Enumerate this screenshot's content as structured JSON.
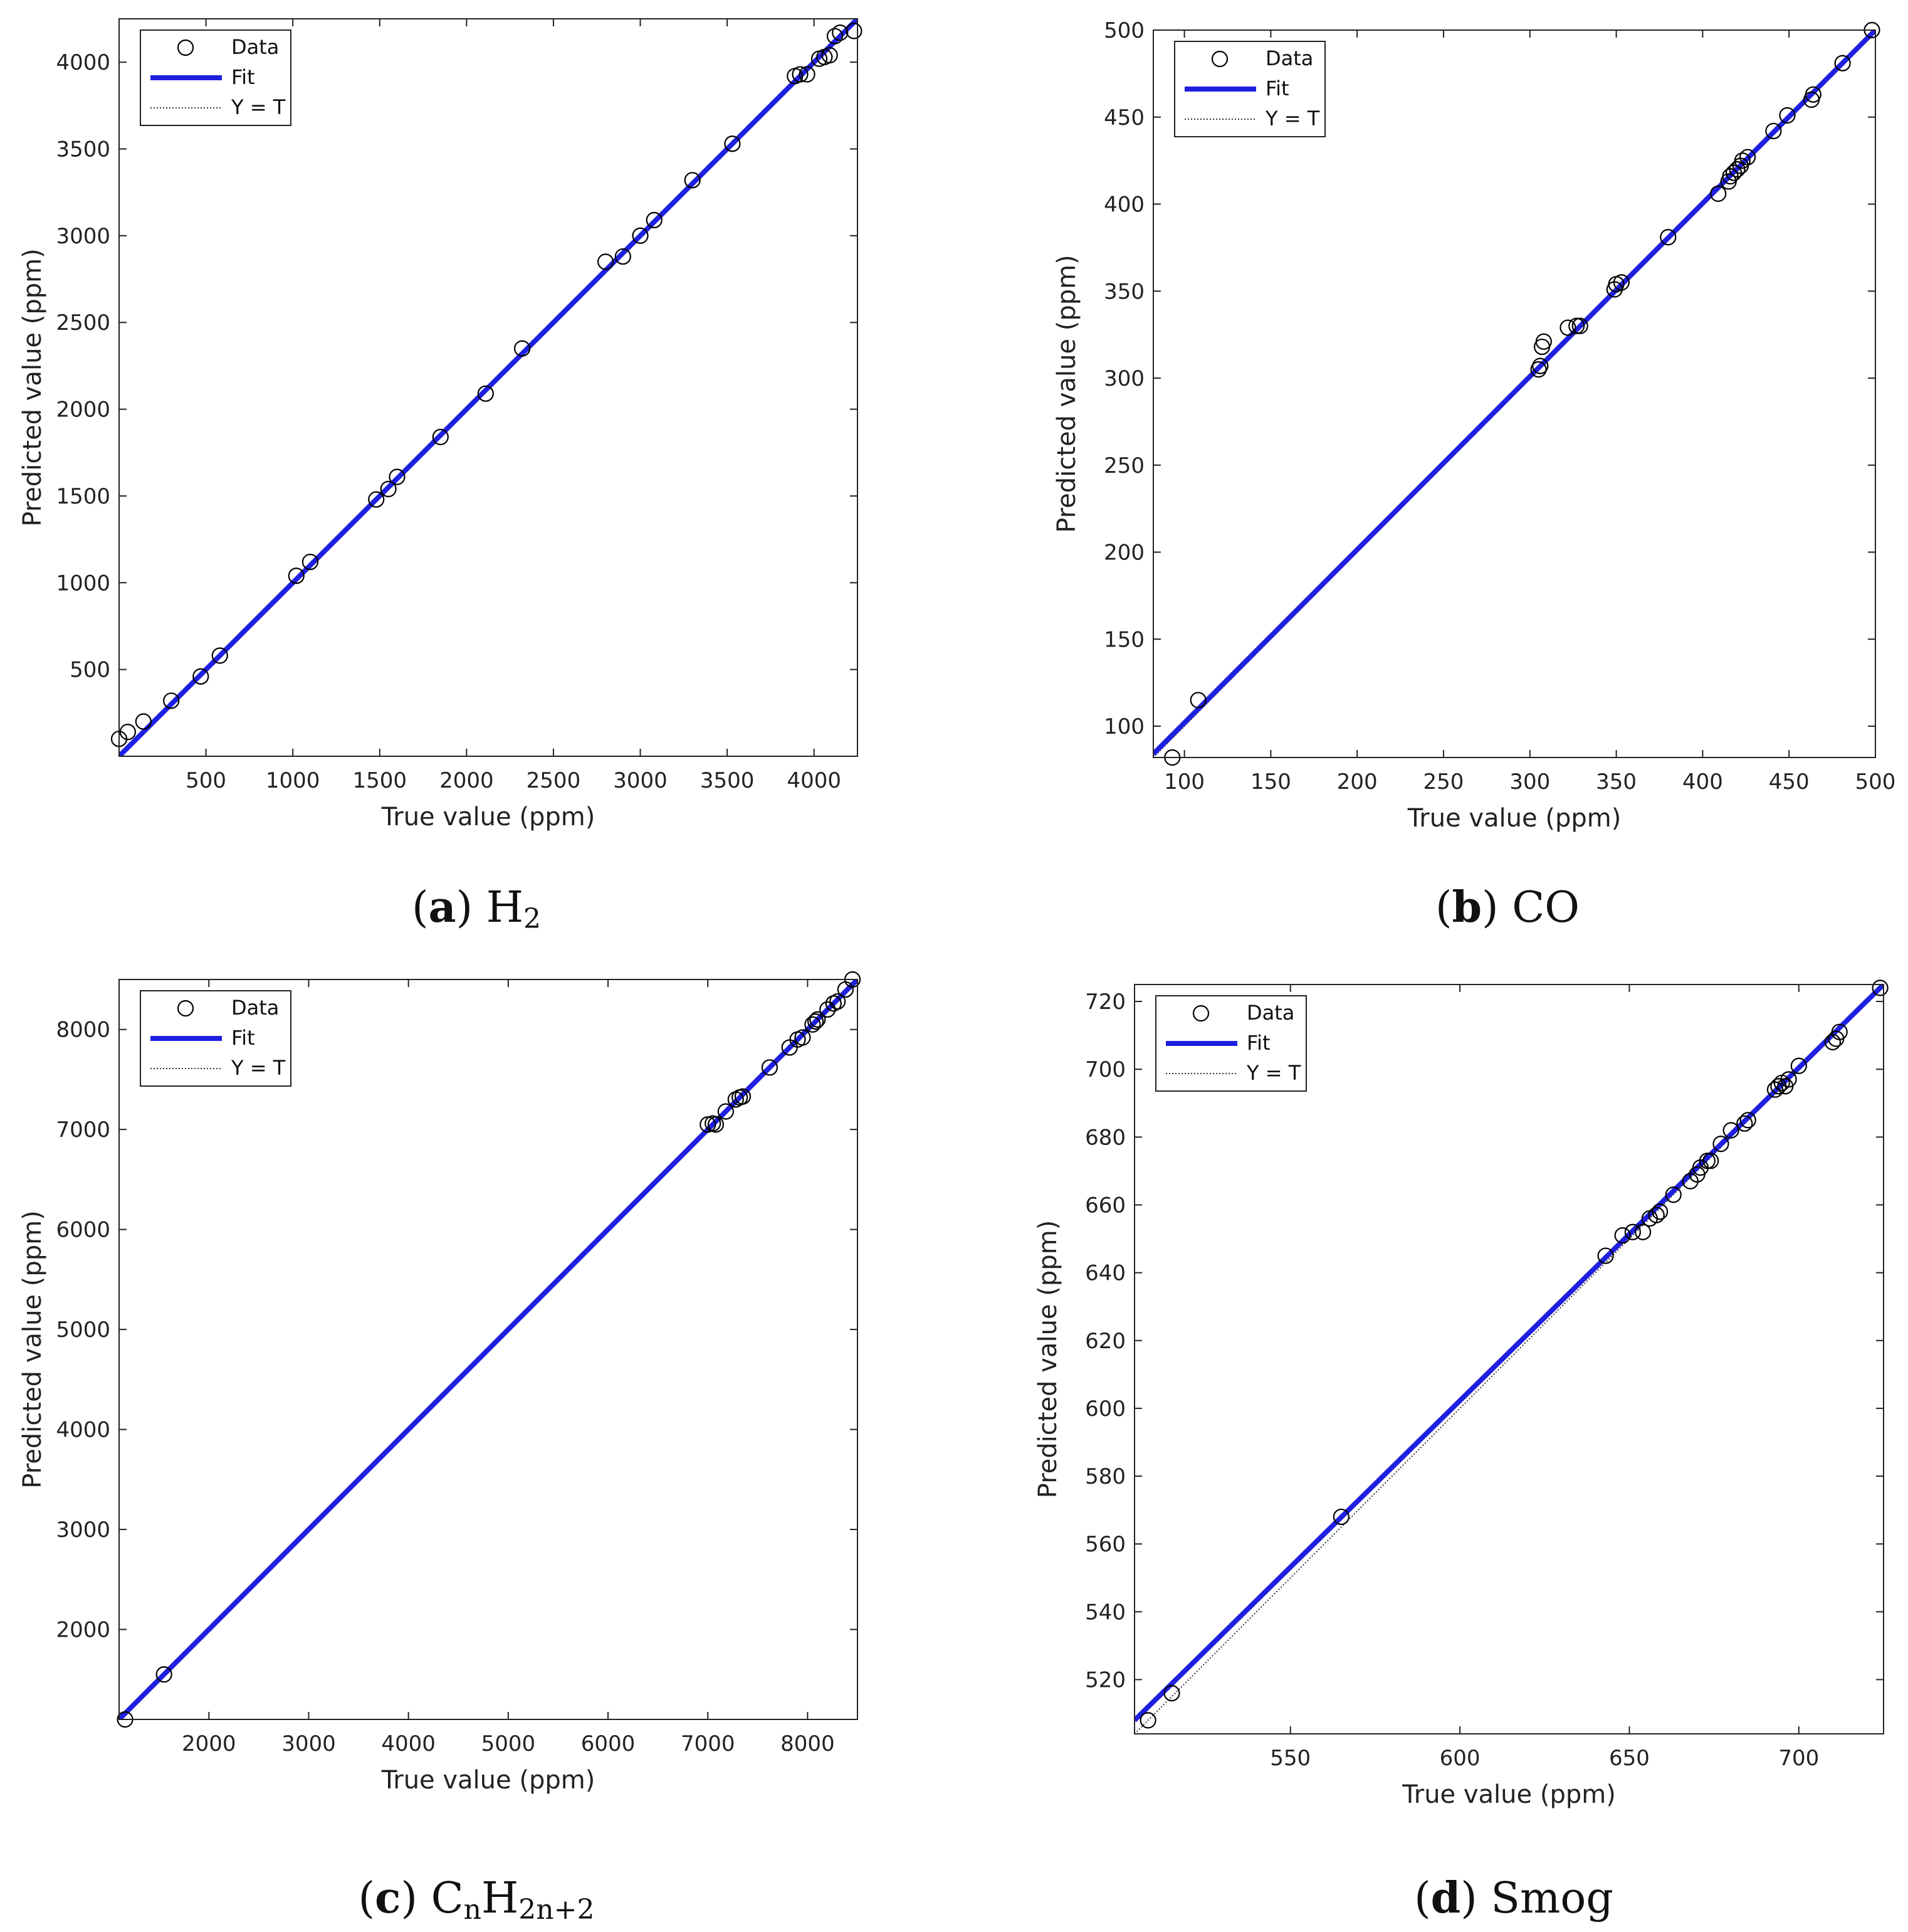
{
  "chart_data": [
    {
      "type": "scatter",
      "caption": {
        "letter": "a",
        "gas": "H",
        "sub": "2"
      },
      "xlabel": "True value (ppm)",
      "ylabel": "Predicted value (ppm)",
      "xlim": [
        0,
        4250
      ],
      "ylim": [
        0,
        4250
      ],
      "xticks": [
        500,
        1000,
        1500,
        2000,
        2500,
        3000,
        3500,
        4000
      ],
      "yticks": [
        500,
        1000,
        1500,
        2000,
        2500,
        3000,
        3500,
        4000
      ],
      "legend": {
        "position": "top-left",
        "entries": [
          "Data",
          "Fit",
          "Y = T"
        ]
      },
      "fit_color": "#1f1fe0",
      "fit_line": [
        [
          0,
          0
        ],
        [
          4250,
          4250
        ]
      ],
      "points": [
        [
          0,
          100
        ],
        [
          50,
          140
        ],
        [
          140,
          200
        ],
        [
          300,
          320
        ],
        [
          470,
          460
        ],
        [
          580,
          580
        ],
        [
          1020,
          1040
        ],
        [
          1100,
          1120
        ],
        [
          1480,
          1480
        ],
        [
          1550,
          1540
        ],
        [
          1600,
          1610
        ],
        [
          1850,
          1840
        ],
        [
          2110,
          2090
        ],
        [
          2320,
          2350
        ],
        [
          2800,
          2850
        ],
        [
          2900,
          2880
        ],
        [
          3000,
          3000
        ],
        [
          3080,
          3090
        ],
        [
          3300,
          3320
        ],
        [
          3530,
          3530
        ],
        [
          3890,
          3920
        ],
        [
          3920,
          3930
        ],
        [
          3960,
          3930
        ],
        [
          4030,
          4020
        ],
        [
          4060,
          4030
        ],
        [
          4090,
          4040
        ],
        [
          4120,
          4150
        ],
        [
          4150,
          4170
        ],
        [
          4230,
          4180
        ]
      ]
    },
    {
      "type": "scatter",
      "caption": {
        "letter": "b",
        "gas": "CO",
        "sub": ""
      },
      "xlabel": "True value (ppm)",
      "ylabel": "Predicted value (ppm)",
      "xlim": [
        82,
        500
      ],
      "ylim": [
        82,
        500
      ],
      "xticks": [
        100,
        150,
        200,
        250,
        300,
        350,
        400,
        450,
        500
      ],
      "yticks": [
        100,
        150,
        200,
        250,
        300,
        350,
        400,
        450,
        500
      ],
      "legend": {
        "position": "top-left",
        "entries": [
          "Data",
          "Fit",
          "Y = T"
        ]
      },
      "fit_color": "#1f1fe0",
      "fit_line": [
        [
          82,
          84
        ],
        [
          500,
          500
        ]
      ],
      "points": [
        [
          93,
          82
        ],
        [
          108,
          115
        ],
        [
          305,
          305
        ],
        [
          306,
          307
        ],
        [
          307,
          318
        ],
        [
          308,
          321
        ],
        [
          322,
          329
        ],
        [
          327,
          330
        ],
        [
          329,
          330
        ],
        [
          349,
          351
        ],
        [
          350,
          354
        ],
        [
          353,
          355
        ],
        [
          380,
          381
        ],
        [
          409,
          406
        ],
        [
          415,
          413
        ],
        [
          416,
          416
        ],
        [
          418,
          418
        ],
        [
          420,
          420
        ],
        [
          422,
          422
        ],
        [
          423,
          425
        ],
        [
          426,
          427
        ],
        [
          441,
          442
        ],
        [
          449,
          451
        ],
        [
          463,
          460
        ],
        [
          464,
          463
        ],
        [
          481,
          481
        ],
        [
          498,
          500
        ]
      ]
    },
    {
      "type": "scatter",
      "caption": {
        "letter": "c",
        "gas": "C",
        "sub": "n",
        "gas2": "H",
        "sub2": "2n+2"
      },
      "xlabel": "True value (ppm)",
      "ylabel": "Predicted value (ppm)",
      "xlim": [
        1100,
        8500
      ],
      "ylim": [
        1100,
        8500
      ],
      "xticks": [
        2000,
        3000,
        4000,
        5000,
        6000,
        7000,
        8000
      ],
      "yticks": [
        2000,
        3000,
        4000,
        5000,
        6000,
        7000,
        8000
      ],
      "legend": {
        "position": "top-left",
        "entries": [
          "Data",
          "Fit",
          "Y = T"
        ]
      },
      "fit_color": "#1f1fe0",
      "fit_line": [
        [
          1100,
          1100
        ],
        [
          8500,
          8500
        ]
      ],
      "points": [
        [
          1160,
          1100
        ],
        [
          1550,
          1550
        ],
        [
          7000,
          7050
        ],
        [
          7050,
          7060
        ],
        [
          7080,
          7050
        ],
        [
          7180,
          7180
        ],
        [
          7280,
          7300
        ],
        [
          7320,
          7320
        ],
        [
          7350,
          7330
        ],
        [
          7620,
          7620
        ],
        [
          7820,
          7820
        ],
        [
          7900,
          7900
        ],
        [
          7950,
          7920
        ],
        [
          8050,
          8050
        ],
        [
          8080,
          8080
        ],
        [
          8100,
          8100
        ],
        [
          8200,
          8200
        ],
        [
          8260,
          8260
        ],
        [
          8300,
          8280
        ],
        [
          8380,
          8400
        ],
        [
          8450,
          8500
        ]
      ]
    },
    {
      "type": "scatter",
      "caption": {
        "letter": "d",
        "gas": "Smog",
        "sub": ""
      },
      "xlabel": "True value (ppm)",
      "ylabel": "Predicted value (ppm)",
      "xlim": [
        504,
        725
      ],
      "ylim": [
        504,
        725
      ],
      "xticks": [
        550,
        600,
        650,
        700
      ],
      "yticks": [
        520,
        540,
        560,
        580,
        600,
        620,
        640,
        660,
        680,
        700,
        720
      ],
      "legend": {
        "position": "top-left",
        "entries": [
          "Data",
          "Fit",
          "Y = T"
        ]
      },
      "fit_color": "#1f1fe0",
      "fit_line": [
        [
          504,
          508
        ],
        [
          725,
          725
        ]
      ],
      "points": [
        [
          508,
          508
        ],
        [
          515,
          516
        ],
        [
          565,
          568
        ],
        [
          643,
          645
        ],
        [
          648,
          651
        ],
        [
          651,
          652
        ],
        [
          654,
          652
        ],
        [
          656,
          656
        ],
        [
          658,
          657
        ],
        [
          659,
          658
        ],
        [
          663,
          663
        ],
        [
          668,
          667
        ],
        [
          670,
          669
        ],
        [
          671,
          671
        ],
        [
          673,
          673
        ],
        [
          674,
          673
        ],
        [
          677,
          678
        ],
        [
          680,
          682
        ],
        [
          684,
          684
        ],
        [
          685,
          685
        ],
        [
          693,
          694
        ],
        [
          694,
          695
        ],
        [
          695,
          696
        ],
        [
          696,
          695
        ],
        [
          697,
          697
        ],
        [
          700,
          701
        ],
        [
          710,
          708
        ],
        [
          711,
          709
        ],
        [
          712,
          711
        ],
        [
          724,
          724
        ]
      ]
    }
  ],
  "colors": {
    "fit": "#1f1fe0",
    "marker": "#000000",
    "reference": "#333333"
  }
}
